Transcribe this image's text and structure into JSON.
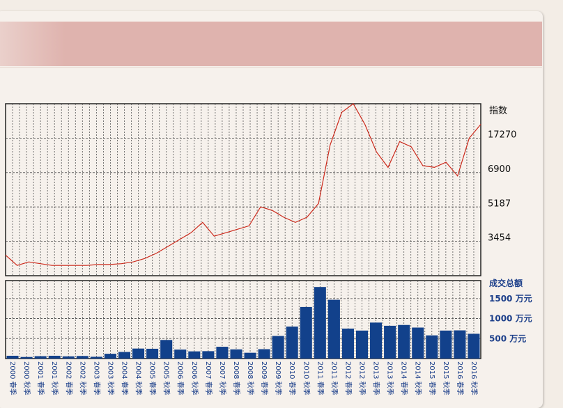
{
  "chart_data": [
    {
      "type": "line",
      "ylabel": "指数",
      "y_ticks": [
        "17270",
        "6900",
        "5187",
        "3454"
      ],
      "y_tick_norm": [
        0.82,
        0.62,
        0.42,
        0.22
      ],
      "grid": true,
      "color": "#cc2a1c",
      "series": [
        {
          "values_norm": [
            0.12,
            0.06,
            0.08,
            0.07,
            0.06,
            0.06,
            0.06,
            0.06,
            0.065,
            0.065,
            0.07,
            0.08,
            0.1,
            0.13,
            0.17,
            0.21,
            0.25,
            0.31,
            0.23,
            0.25,
            0.27,
            0.29,
            0.4,
            0.38,
            0.34,
            0.31,
            0.34,
            0.42,
            0.76,
            0.95,
            1.0,
            0.88,
            0.72,
            0.63,
            0.78,
            0.75,
            0.64,
            0.63,
            0.66,
            0.58,
            0.8,
            0.88
          ]
        }
      ]
    },
    {
      "type": "bar",
      "ylabel": "成交总额",
      "y_ticks": [
        "1500 万元",
        "1000 万元",
        "500 万元"
      ],
      "y_tick_values": [
        1500,
        1000,
        500
      ],
      "ylim": [
        0,
        1950
      ],
      "color": "#12418b",
      "categories": [
        "2000 春季",
        "2000 秋季",
        "2001 春季",
        "2001 秋季",
        "2002 春季",
        "2002 秋季",
        "2003 春季",
        "2003 秋季",
        "2004 春季",
        "2004 秋季",
        "2005 春季",
        "2005 秋季",
        "2006 春季",
        "2006 秋季",
        "2007 春季",
        "2007 秋季",
        "2008 春季",
        "2008 秋季",
        "2009 春季",
        "2009 秋季",
        "2010 春季",
        "2010 秋季",
        "2011 春季",
        "2011 秋季",
        "2012 春季",
        "2012 秋季",
        "2013 春季",
        "2013 秋季",
        "2014 春季",
        "2014 秋季",
        "2015 春季",
        "2015 秋季",
        "2016 春季",
        "2016 秋季"
      ],
      "values": [
        70,
        40,
        60,
        70,
        55,
        65,
        45,
        120,
        165,
        250,
        245,
        465,
        225,
        180,
        185,
        295,
        230,
        145,
        235,
        565,
        800,
        1290,
        1790,
        1470,
        750,
        700,
        900,
        820,
        840,
        775,
        580,
        700,
        705,
        620
      ]
    }
  ]
}
